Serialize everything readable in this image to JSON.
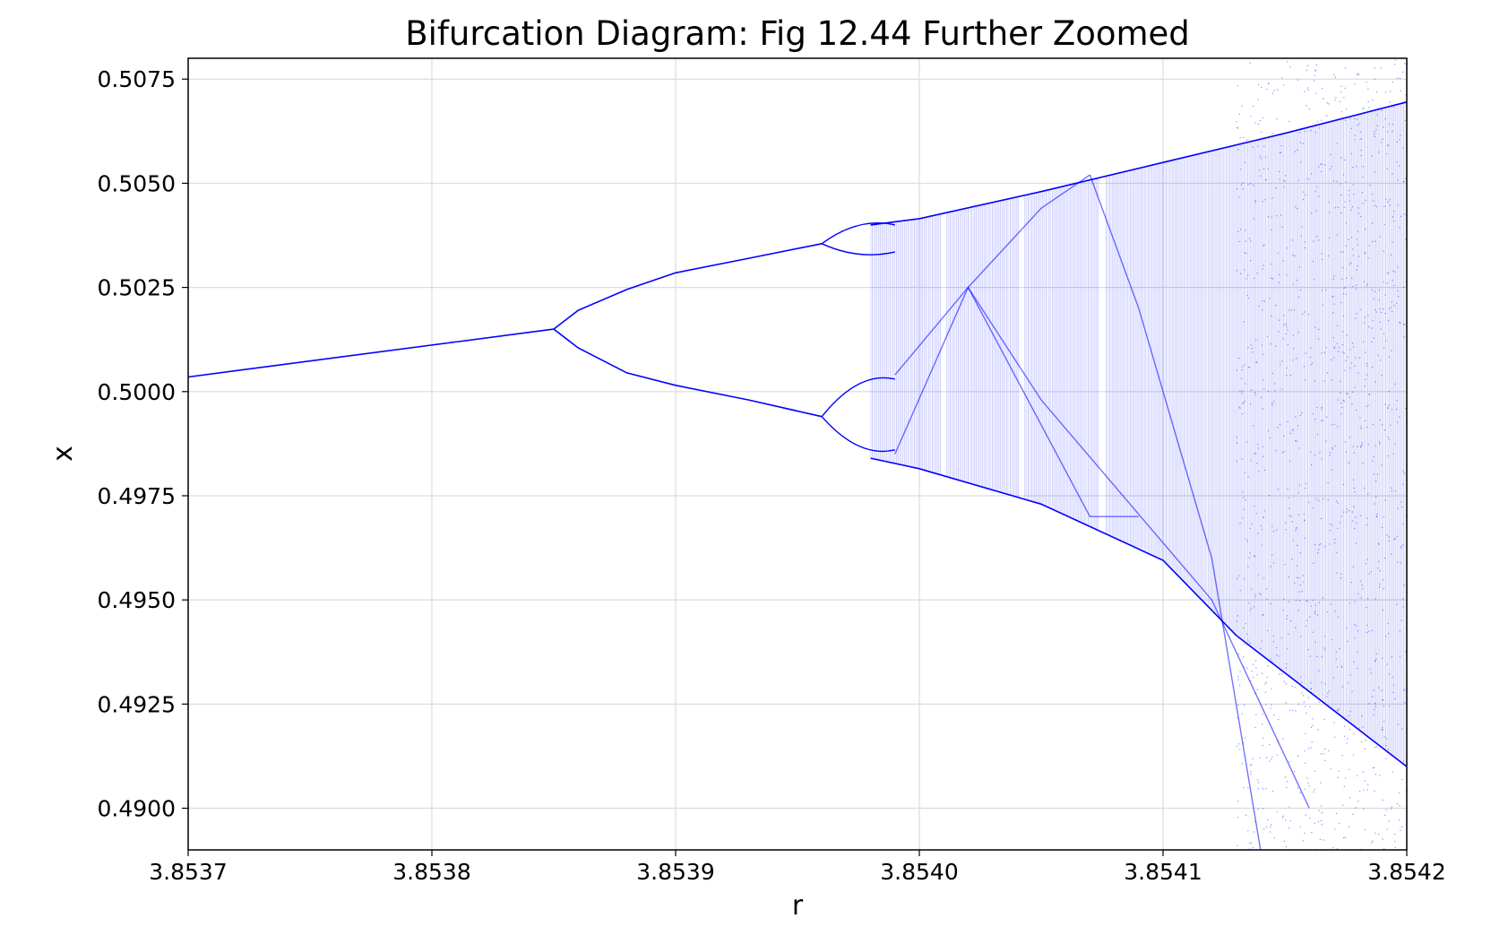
{
  "chart_data": {
    "type": "scatter",
    "title": "Bifurcation Diagram: Fig 12.44 Further Zoomed",
    "xlabel": "r",
    "ylabel": "x",
    "xlim": [
      3.8537,
      3.8542
    ],
    "ylim": [
      0.489,
      0.508
    ],
    "xticks": [
      3.8537,
      3.8538,
      3.8539,
      3.854,
      3.8541,
      3.8542
    ],
    "xtick_labels": [
      "3.8537",
      "3.8538",
      "3.8539",
      "3.8540",
      "3.8541",
      "3.8542"
    ],
    "yticks": [
      0.49,
      0.4925,
      0.495,
      0.4975,
      0.5,
      0.5025,
      0.505,
      0.5075
    ],
    "ytick_labels": [
      "0.4900",
      "0.4925",
      "0.4950",
      "0.4975",
      "0.5000",
      "0.5025",
      "0.5050",
      "0.5075"
    ],
    "grid": true,
    "color": "#0000ff",
    "series": [
      {
        "key": "period-1 branch",
        "points": [
          [
            3.8537,
            0.50035
          ],
          [
            3.85385,
            0.5015
          ]
        ]
      },
      {
        "key": "period-2 upper branch",
        "points": [
          [
            3.85385,
            0.5015
          ],
          [
            3.85386,
            0.50195
          ],
          [
            3.85388,
            0.50245
          ],
          [
            3.8539,
            0.50285
          ],
          [
            3.85393,
            0.5032
          ],
          [
            3.85396,
            0.50355
          ]
        ]
      },
      {
        "key": "period-2 lower branch",
        "points": [
          [
            3.85385,
            0.5015
          ],
          [
            3.85386,
            0.50105
          ],
          [
            3.85388,
            0.50045
          ],
          [
            3.8539,
            0.50015
          ],
          [
            3.85393,
            0.4998
          ],
          [
            3.85396,
            0.4994
          ]
        ]
      },
      {
        "key": "chaotic band upper envelope",
        "points": [
          [
            3.85398,
            0.504
          ],
          [
            3.854,
            0.50415
          ],
          [
            3.85405,
            0.5048
          ],
          [
            3.8541,
            0.5055
          ],
          [
            3.85415,
            0.5062
          ],
          [
            3.8542,
            0.50695
          ]
        ]
      },
      {
        "key": "chaotic band lower envelope",
        "points": [
          [
            3.85398,
            0.4984
          ],
          [
            3.854,
            0.49815
          ],
          [
            3.85405,
            0.4973
          ],
          [
            3.8541,
            0.49595
          ],
          [
            3.85413,
            0.49415
          ],
          [
            3.8542,
            0.491
          ]
        ]
      }
    ],
    "periodic_windows_r": [
      3.85401,
      3.854042,
      3.854075
    ]
  }
}
